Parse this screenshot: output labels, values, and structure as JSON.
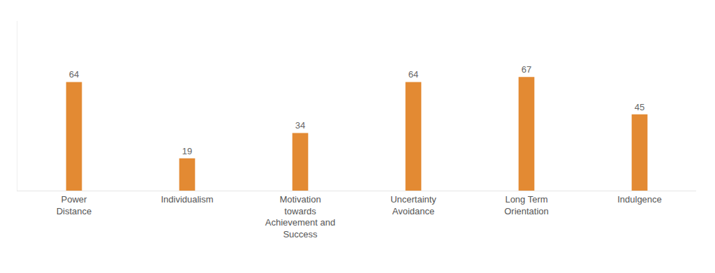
{
  "chart_data": {
    "type": "bar",
    "categories": [
      "Power\nDistance",
      "Individualism",
      "Motivation\ntowards\nAchievement and\nSuccess",
      "Uncertainty\nAvoidance",
      "Long Term\nOrientation",
      "Indulgence"
    ],
    "values": [
      64,
      19,
      34,
      64,
      67,
      45
    ],
    "color": "#e38a33",
    "ylim": [
      0,
      100
    ],
    "data_labels": true,
    "tick_labels": "x",
    "grid": false
  }
}
